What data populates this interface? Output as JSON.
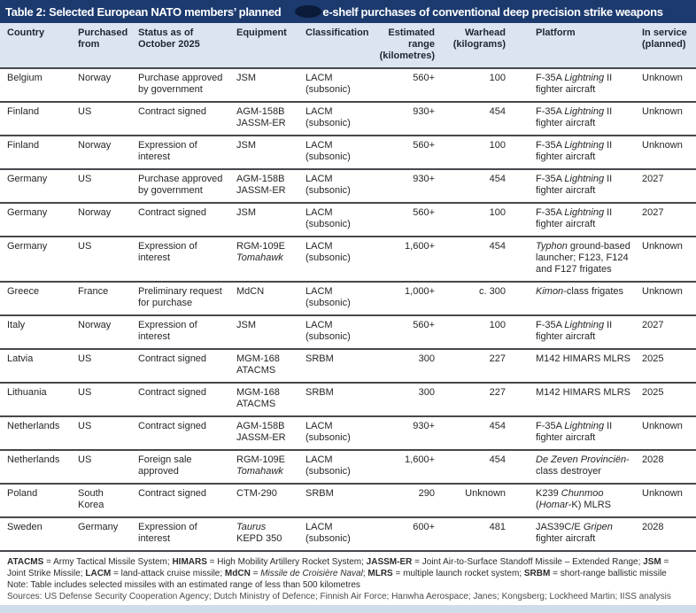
{
  "title": {
    "left": "Table 2: Selected European NATO members’ planned",
    "right": "e-shelf purchases of conventional deep precision strike weapons"
  },
  "colors": {
    "title_bg": "#1c3a6e",
    "title_blob": "#0a1a38",
    "header_bg": "#dbe5f1",
    "row_rule": "#45484c"
  },
  "columns": [
    {
      "key": "country",
      "label": "Country",
      "align": "left"
    },
    {
      "key": "from",
      "label": "Purchased from",
      "align": "left"
    },
    {
      "key": "status",
      "label": "Status as of October 2025",
      "align": "left"
    },
    {
      "key": "equipment",
      "label": "Equipment",
      "align": "left"
    },
    {
      "key": "classification",
      "label": "Classification",
      "align": "left"
    },
    {
      "key": "range",
      "label": "Estimated range (kilometres)",
      "align": "right"
    },
    {
      "key": "warhead",
      "label": "Warhead (kilograms)",
      "align": "right"
    },
    {
      "key": "platform",
      "label": "Platform",
      "align": "left"
    },
    {
      "key": "in_service",
      "label": "In service (planned)",
      "align": "left"
    }
  ],
  "rows": [
    {
      "country": "Belgium",
      "from": "Norway",
      "status": [
        {
          "t": "Purchase approved by government"
        }
      ],
      "equipment": [
        {
          "t": "JSM"
        }
      ],
      "classification": "LACM (subsonic)",
      "range": "560+",
      "warhead": "100",
      "platform": [
        {
          "t": "F-35A "
        },
        {
          "t": "Lightning",
          "i": 1
        },
        {
          "t": " II fighter aircraft"
        }
      ],
      "in_service": "Unknown"
    },
    {
      "country": "Finland",
      "from": "US",
      "status": [
        {
          "t": "Contract signed"
        }
      ],
      "equipment": [
        {
          "t": "AGM-158B"
        },
        {
          "br": 1
        },
        {
          "t": "JASSM-ER"
        }
      ],
      "classification": "LACM (subsonic)",
      "range": "930+",
      "warhead": "454",
      "platform": [
        {
          "t": "F-35A "
        },
        {
          "t": "Lightning",
          "i": 1
        },
        {
          "t": " II fighter aircraft"
        }
      ],
      "in_service": "Unknown"
    },
    {
      "country": "Finland",
      "from": "Norway",
      "status": [
        {
          "t": "Expression of interest"
        }
      ],
      "equipment": [
        {
          "t": "JSM"
        }
      ],
      "classification": "LACM (subsonic)",
      "range": "560+",
      "warhead": "100",
      "platform": [
        {
          "t": "F-35A "
        },
        {
          "t": "Lightning",
          "i": 1
        },
        {
          "t": " II fighter aircraft"
        }
      ],
      "in_service": "Unknown"
    },
    {
      "country": "Germany",
      "from": "US",
      "status": [
        {
          "t": "Purchase approved by government"
        }
      ],
      "equipment": [
        {
          "t": "AGM-158B"
        },
        {
          "br": 1
        },
        {
          "t": "JASSM-ER"
        }
      ],
      "classification": "LACM (subsonic)",
      "range": "930+",
      "warhead": "454",
      "platform": [
        {
          "t": "F-35A "
        },
        {
          "t": "Lightning",
          "i": 1
        },
        {
          "t": " II fighter aircraft"
        }
      ],
      "in_service": "2027"
    },
    {
      "country": "Germany",
      "from": "Norway",
      "status": [
        {
          "t": "Contract signed"
        }
      ],
      "equipment": [
        {
          "t": "JSM"
        }
      ],
      "classification": "LACM (subsonic)",
      "range": "560+",
      "warhead": "100",
      "platform": [
        {
          "t": "F-35A "
        },
        {
          "t": "Lightning",
          "i": 1
        },
        {
          "t": " II fighter aircraft"
        }
      ],
      "in_service": "2027"
    },
    {
      "country": "Germany",
      "from": "US",
      "status": [
        {
          "t": "Expression of interest"
        }
      ],
      "equipment": [
        {
          "t": "RGM-109E"
        },
        {
          "br": 1
        },
        {
          "t": "Tomahawk",
          "i": 1
        }
      ],
      "classification": "LACM (subsonic)",
      "range": "1,600+",
      "warhead": "454",
      "platform": [
        {
          "t": "Typhon",
          "i": 1
        },
        {
          "t": " ground-based launcher; F123, F124 and F127 frigates"
        }
      ],
      "in_service": "Unknown"
    },
    {
      "country": "Greece",
      "from": "France",
      "status": [
        {
          "t": "Preliminary request for purchase"
        }
      ],
      "equipment": [
        {
          "t": "MdCN"
        }
      ],
      "classification": "LACM (subsonic)",
      "range": "1,000+",
      "warhead": "c. 300",
      "platform": [
        {
          "t": "Kimon",
          "i": 1
        },
        {
          "t": "-class frigates"
        }
      ],
      "in_service": "Unknown"
    },
    {
      "country": "Italy",
      "from": "Norway",
      "status": [
        {
          "t": "Expression of interest"
        }
      ],
      "equipment": [
        {
          "t": "JSM"
        }
      ],
      "classification": "LACM (subsonic)",
      "range": "560+",
      "warhead": "100",
      "platform": [
        {
          "t": "F-35A "
        },
        {
          "t": "Lightning",
          "i": 1
        },
        {
          "t": " II fighter aircraft"
        }
      ],
      "in_service": "2027"
    },
    {
      "country": "Latvia",
      "from": "US",
      "status": [
        {
          "t": "Contract signed"
        }
      ],
      "equipment": [
        {
          "t": "MGM-168"
        },
        {
          "br": 1
        },
        {
          "t": "ATACMS"
        }
      ],
      "classification": "SRBM",
      "range": "300",
      "warhead": "227",
      "platform": [
        {
          "t": "M142 HIMARS MLRS"
        }
      ],
      "in_service": "2025"
    },
    {
      "country": "Lithuania",
      "from": "US",
      "status": [
        {
          "t": "Contract signed"
        }
      ],
      "equipment": [
        {
          "t": "MGM-168"
        },
        {
          "br": 1
        },
        {
          "t": "ATACMS"
        }
      ],
      "classification": "SRBM",
      "range": "300",
      "warhead": "227",
      "platform": [
        {
          "t": "M142 HIMARS MLRS"
        }
      ],
      "in_service": "2025"
    },
    {
      "country": "Netherlands",
      "from": "US",
      "status": [
        {
          "t": "Contract signed"
        }
      ],
      "equipment": [
        {
          "t": "AGM-158B"
        },
        {
          "br": 1
        },
        {
          "t": "JASSM-ER"
        }
      ],
      "classification": "LACM (subsonic)",
      "range": "930+",
      "warhead": "454",
      "platform": [
        {
          "t": "F-35A "
        },
        {
          "t": "Lightning",
          "i": 1
        },
        {
          "t": " II fighter aircraft"
        }
      ],
      "in_service": "Unknown"
    },
    {
      "country": "Netherlands",
      "from": "US",
      "status": [
        {
          "t": "Foreign sale"
        },
        {
          "br": 1
        },
        {
          "t": "approved"
        }
      ],
      "equipment": [
        {
          "t": "RGM-109E"
        },
        {
          "br": 1
        },
        {
          "t": "Tomahawk",
          "i": 1
        }
      ],
      "classification": "LACM (subsonic)",
      "range": "1,600+",
      "warhead": "454",
      "platform": [
        {
          "t": "De Zeven Provinciën",
          "i": 1
        },
        {
          "t": "-class destroyer"
        }
      ],
      "in_service": "2028"
    },
    {
      "country": "Poland",
      "from": "South Korea",
      "status": [
        {
          "t": "Contract signed"
        }
      ],
      "equipment": [
        {
          "t": "CTM-290"
        }
      ],
      "classification": "SRBM",
      "range": "290",
      "warhead": "Unknown",
      "platform": [
        {
          "t": "K239 "
        },
        {
          "t": "Chunmoo",
          "i": 1
        },
        {
          "t": " ("
        },
        {
          "t": "Homar",
          "i": 1
        },
        {
          "t": "-K) MLRS"
        }
      ],
      "in_service": "Unknown"
    },
    {
      "country": "Sweden",
      "from": "Germany",
      "status": [
        {
          "t": "Expression of interest"
        }
      ],
      "equipment": [
        {
          "t": "Taurus",
          "i": 1
        },
        {
          "br": 1
        },
        {
          "t": "KEPD 350"
        }
      ],
      "classification": "LACM (subsonic)",
      "range": "600+",
      "warhead": "481",
      "platform": [
        {
          "t": "JAS39C/E "
        },
        {
          "t": "Gripen",
          "i": 1
        },
        {
          "t": " fighter aircraft"
        }
      ],
      "in_service": "2028"
    }
  ],
  "footnotes": {
    "abbreviations": [
      {
        "t": "ATACMS",
        "b": 1
      },
      {
        "t": " = Army Tactical Missile System; "
      },
      {
        "t": "HIMARS",
        "b": 1
      },
      {
        "t": " = High Mobility Artillery Rocket System; "
      },
      {
        "t": "JASSM-ER",
        "b": 1
      },
      {
        "t": " = Joint Air-to-Surface Standoff Missile – Extended Range; "
      },
      {
        "t": "JSM",
        "b": 1
      },
      {
        "t": " = Joint Strike Missile; "
      },
      {
        "t": "LACM",
        "b": 1
      },
      {
        "t": " = land-attack cruise missile; "
      },
      {
        "t": "MdCN",
        "b": 1
      },
      {
        "t": " = "
      },
      {
        "t": "Missile de Croisière Naval",
        "i": 1
      },
      {
        "t": "; "
      },
      {
        "t": "MLRS",
        "b": 1
      },
      {
        "t": " = multiple launch rocket system; "
      },
      {
        "t": "SRBM",
        "b": 1
      },
      {
        "t": " = short-range ballistic missile"
      }
    ],
    "note": "Note: Table includes selected missiles with an estimated range of less than 500 kilometres",
    "sources": "Sources: US Defense Security Cooperation Agency; Dutch Ministry of Defence; Finnish Air Force; Hanwha Aerospace; Janes; Kongsberg; Lockheed Martin; IISS analysis"
  }
}
